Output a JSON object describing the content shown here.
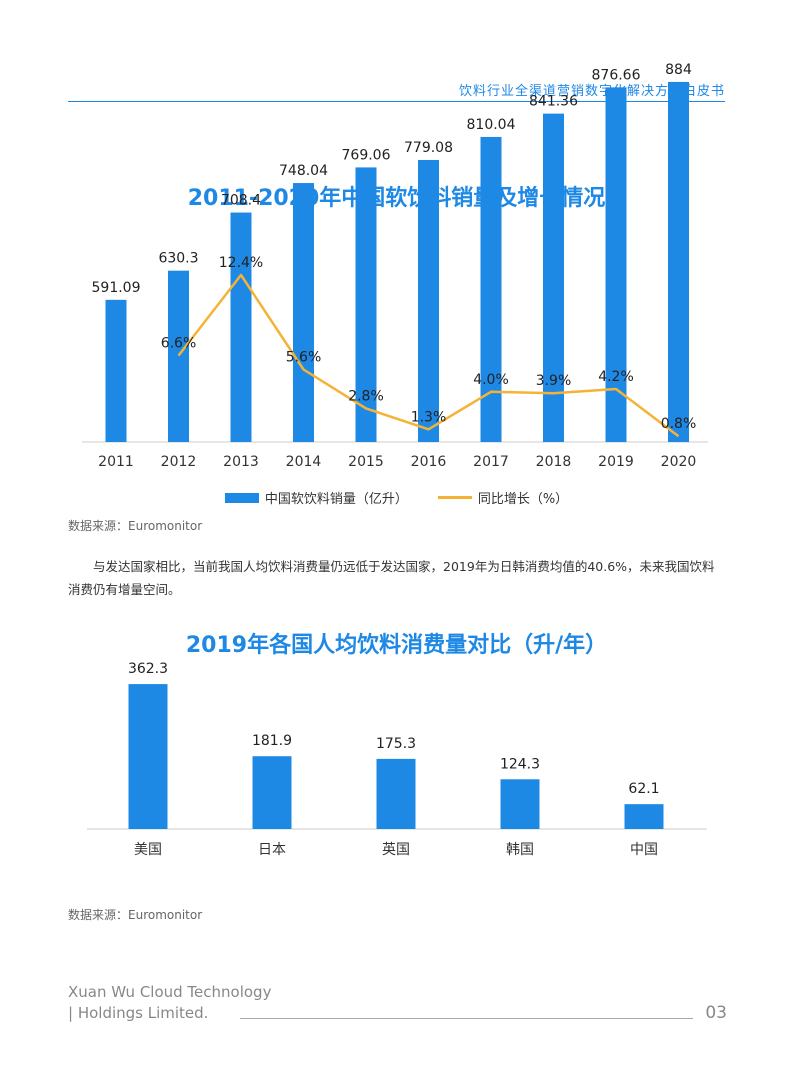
{
  "header": {
    "title": "饮料行业全渠道营销数字化解决方案白皮书"
  },
  "chart_data": [
    {
      "type": "bar",
      "title": "2011-2020年中国软饮料销量及增长情况",
      "categories": [
        "2011",
        "2012",
        "2013",
        "2014",
        "2015",
        "2016",
        "2017",
        "2018",
        "2019",
        "2020"
      ],
      "series": [
        {
          "name": "中国软饮料销量（亿升）",
          "type": "bar",
          "values": [
            591.09,
            630.3,
            708.4,
            748.04,
            769.06,
            779.08,
            810.04,
            841.36,
            876.66,
            884
          ],
          "labels": [
            "591.09",
            "630.3",
            "708.4",
            "748.04",
            "769.06",
            "779.08",
            "810.04",
            "841.36",
            "876.66",
            "884"
          ]
        },
        {
          "name": "同比增长（%）",
          "type": "line",
          "values": [
            null,
            6.6,
            12.4,
            5.6,
            2.8,
            1.3,
            4.0,
            3.9,
            4.2,
            0.8
          ],
          "labels": [
            "",
            "6.6%",
            "12.4%",
            "5.6%",
            "2.8%",
            "1.3%",
            "4.0%",
            "3.9%",
            "4.2%",
            "0.8%"
          ]
        }
      ],
      "colors": {
        "bar": "#1e88e5",
        "line": "#f5b335"
      },
      "source": "数据来源：Euromonitor"
    },
    {
      "type": "bar",
      "title": "2019年各国人均饮料消费量对比（升/年）",
      "categories": [
        "美国",
        "日本",
        "英国",
        "韩国",
        "中国"
      ],
      "values": [
        362.3,
        181.9,
        175.3,
        124.3,
        62.1
      ],
      "labels": [
        "362.3",
        "181.9",
        "175.3",
        "124.3",
        "62.1"
      ],
      "colors": {
        "bar": "#1e88e5"
      },
      "source": "数据来源：Euromonitor"
    }
  ],
  "paragraph": "与发达国家相比，当前我国人均饮料消费量仍远低于发达国家，2019年为日韩消费均值的40.6%，未来我国饮料消费仍有增量空间。",
  "footer": {
    "company_line1": "Xuan Wu Cloud Technology",
    "company_line2": "| Holdings Limited.",
    "page_number": "03"
  }
}
